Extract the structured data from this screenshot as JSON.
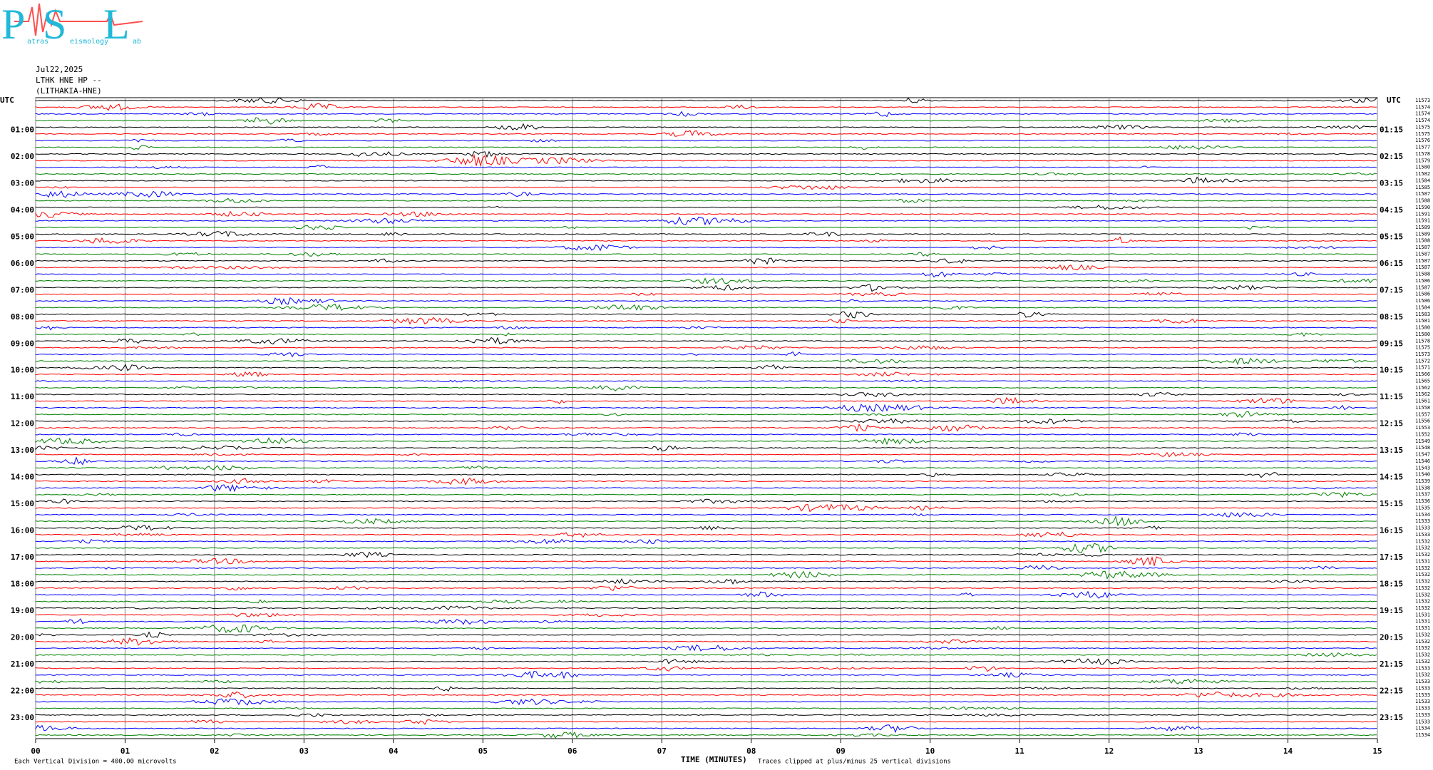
{
  "chart_data": {
    "type": "helicorder",
    "logo": {
      "letters": [
        "P",
        "S",
        "L"
      ],
      "words": [
        "atras",
        "eismology",
        "ab"
      ]
    },
    "header": [
      "Jul22,2025",
      "LTHK HNE HP --",
      "(LITHAKIA-HNE)"
    ],
    "left_labels": [
      "UTC",
      "01:00",
      "02:00",
      "03:00",
      "04:00",
      "05:00",
      "06:00",
      "07:00",
      "08:00",
      "09:00",
      "10:00",
      "11:00",
      "12:00",
      "13:00",
      "14:00",
      "15:00",
      "16:00",
      "17:00",
      "18:00",
      "19:00",
      "20:00",
      "21:00",
      "22:00",
      "23:00"
    ],
    "right_labels": [
      "UTC",
      "01:15",
      "02:15",
      "03:15",
      "04:15",
      "05:15",
      "06:15",
      "07:15",
      "08:15",
      "09:15",
      "10:15",
      "11:15",
      "12:15",
      "13:15",
      "14:15",
      "15:15",
      "16:15",
      "17:15",
      "18:15",
      "19:15",
      "20:15",
      "21:15",
      "22:15",
      "23:15"
    ],
    "trace_labels": [
      11573,
      11574,
      11574,
      11574,
      11575,
      11575,
      11576,
      11577,
      11578,
      11579,
      11580,
      11582,
      11584,
      11585,
      11587,
      11588,
      11590,
      11591,
      11591,
      11589,
      11589,
      11588,
      11587,
      11587,
      11587,
      11587,
      11588,
      11586,
      11587,
      11586,
      11586,
      11584,
      11583,
      11581,
      11580,
      11580,
      11578,
      11575,
      11573,
      11572,
      11571,
      11566,
      11565,
      11562,
      11562,
      11561,
      11558,
      11557,
      11556,
      11553,
      11552,
      11549,
      11548,
      11547,
      11546,
      11543,
      11540,
      11539,
      11538,
      11537,
      11536,
      11535,
      11534,
      11533,
      11533,
      11533,
      11532,
      11532,
      11532,
      11531,
      11532,
      11532,
      11532,
      11532,
      11532,
      11532,
      11532,
      11531,
      11531,
      11531,
      11532,
      11532,
      11532,
      11532,
      11532,
      11533,
      11532,
      11533,
      11533,
      11533,
      11533,
      11533,
      11533,
      11533,
      11534,
      11534
    ],
    "trace_colors": [
      "#000000",
      "#ff0000",
      "#0000ff",
      "#008000"
    ],
    "xlim": [
      0,
      15
    ],
    "xticks": [
      {
        "value": 0,
        "label": "00"
      },
      {
        "value": 1,
        "label": "01"
      },
      {
        "value": 2,
        "label": "02"
      },
      {
        "value": 3,
        "label": "03"
      },
      {
        "value": 4,
        "label": "04"
      },
      {
        "value": 5,
        "label": "05"
      },
      {
        "value": 6,
        "label": "06"
      },
      {
        "value": 7,
        "label": "07"
      },
      {
        "value": 8,
        "label": "08"
      },
      {
        "value": 9,
        "label": "09"
      },
      10,
      11,
      12,
      13,
      14,
      15
    ],
    "grid": true,
    "xlabel": "TIME (MINUTES)",
    "scale_note": "Each Vertical Division =  400.00 microvolts",
    "clip_note": "Traces clipped at plus/minus 25 vertical divisions"
  }
}
